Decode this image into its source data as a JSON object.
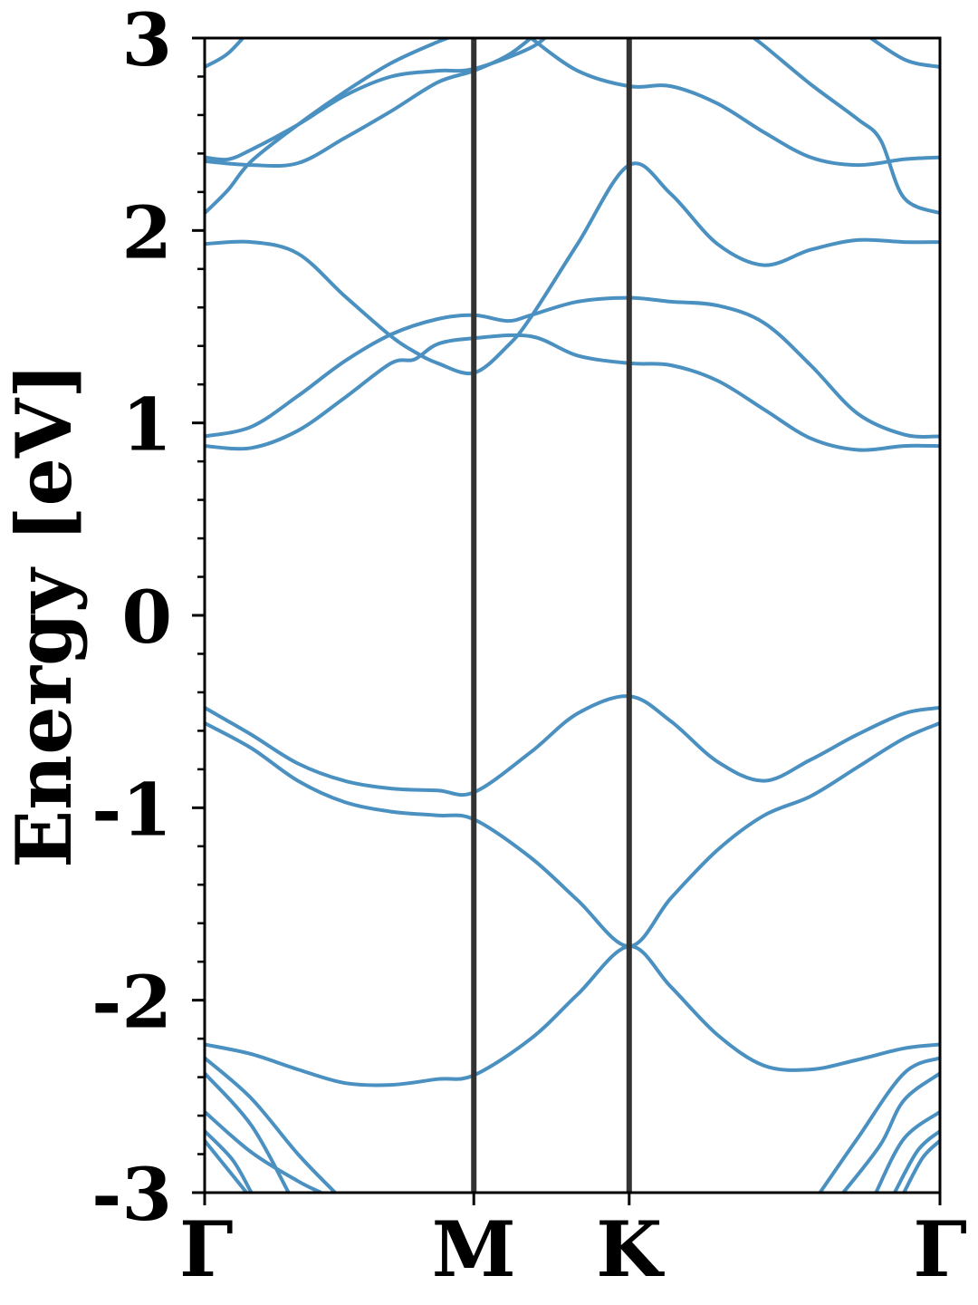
{
  "chart_data": {
    "type": "line",
    "title": "",
    "xlabel": "",
    "ylabel": "Energy [eV]",
    "ylim": [
      -3,
      3
    ],
    "yticks": [
      -3,
      -2,
      -1,
      0,
      1,
      2,
      3
    ],
    "ytick_labels": [
      "-3",
      "-2",
      "-1",
      "0",
      "1",
      "2",
      "3"
    ],
    "ytick_minor_step": 0.2,
    "k_path": {
      "labels": [
        "Γ",
        "M",
        "K",
        "Γ"
      ],
      "positions": [
        0,
        0.5774,
        0.9107,
        1.5774
      ]
    },
    "grid": false,
    "legend": "none",
    "colors": {
      "band": "#4a90c0",
      "kline": "#333333",
      "axis": "#000000"
    },
    "series": [
      {
        "values": [
          [
            0,
            -2.23
          ],
          [
            0.1,
            -2.28
          ],
          [
            0.2,
            -2.36
          ],
          [
            0.3,
            -2.43
          ],
          [
            0.4,
            -2.44
          ],
          [
            0.5,
            -2.41
          ],
          [
            0.5774,
            -2.39
          ],
          [
            0.7,
            -2.2
          ],
          [
            0.8,
            -1.97
          ],
          [
            0.9107,
            -1.72
          ],
          [
            1.0,
            -1.93
          ],
          [
            1.1,
            -2.18
          ],
          [
            1.2,
            -2.34
          ],
          [
            1.3,
            -2.36
          ],
          [
            1.4,
            -2.31
          ],
          [
            1.5,
            -2.25
          ],
          [
            1.5774,
            -2.23
          ]
        ]
      },
      {
        "values": [
          [
            0,
            -0.48
          ],
          [
            0.1,
            -0.62
          ],
          [
            0.2,
            -0.77
          ],
          [
            0.3,
            -0.86
          ],
          [
            0.4,
            -0.9
          ],
          [
            0.5,
            -0.91
          ],
          [
            0.5774,
            -0.92
          ],
          [
            0.7,
            -0.71
          ],
          [
            0.8,
            -0.51
          ],
          [
            0.9107,
            -0.42
          ],
          [
            1.0,
            -0.55
          ],
          [
            1.1,
            -0.76
          ],
          [
            1.2,
            -0.86
          ],
          [
            1.3,
            -0.75
          ],
          [
            1.4,
            -0.62
          ],
          [
            1.5,
            -0.51
          ],
          [
            1.5774,
            -0.48
          ]
        ]
      },
      {
        "values": [
          [
            0,
            -0.56
          ],
          [
            0.1,
            -0.69
          ],
          [
            0.2,
            -0.86
          ],
          [
            0.3,
            -0.97
          ],
          [
            0.4,
            -1.02
          ],
          [
            0.5,
            -1.04
          ],
          [
            0.5774,
            -1.06
          ],
          [
            0.7,
            -1.26
          ],
          [
            0.8,
            -1.48
          ],
          [
            0.9107,
            -1.72
          ],
          [
            1.0,
            -1.47
          ],
          [
            1.1,
            -1.22
          ],
          [
            1.2,
            -1.04
          ],
          [
            1.3,
            -0.94
          ],
          [
            1.4,
            -0.79
          ],
          [
            1.5,
            -0.64
          ],
          [
            1.5774,
            -0.56
          ]
        ]
      },
      {
        "values": [
          [
            0,
            0.88
          ],
          [
            0.1,
            0.87
          ],
          [
            0.2,
            0.96
          ],
          [
            0.3,
            1.13
          ],
          [
            0.4,
            1.31
          ],
          [
            0.45,
            1.33
          ],
          [
            0.5,
            1.41
          ],
          [
            0.5774,
            1.44
          ],
          [
            0.7,
            1.45
          ],
          [
            0.8,
            1.35
          ],
          [
            0.9107,
            1.31
          ],
          [
            1.0,
            1.3
          ],
          [
            1.1,
            1.22
          ],
          [
            1.2,
            1.07
          ],
          [
            1.3,
            0.92
          ],
          [
            1.4,
            0.86
          ],
          [
            1.5,
            0.88
          ],
          [
            1.5774,
            0.88
          ]
        ]
      },
      {
        "values": [
          [
            0,
            0.93
          ],
          [
            0.1,
            0.98
          ],
          [
            0.2,
            1.14
          ],
          [
            0.3,
            1.32
          ],
          [
            0.4,
            1.46
          ],
          [
            0.5,
            1.54
          ],
          [
            0.5774,
            1.56
          ],
          [
            0.65,
            1.53
          ],
          [
            0.7,
            1.56
          ],
          [
            0.8,
            1.63
          ],
          [
            0.9107,
            1.65
          ],
          [
            1.0,
            1.63
          ],
          [
            1.1,
            1.61
          ],
          [
            1.2,
            1.52
          ],
          [
            1.3,
            1.3
          ],
          [
            1.4,
            1.05
          ],
          [
            1.5,
            0.94
          ],
          [
            1.5774,
            0.93
          ]
        ]
      },
      {
        "values": [
          [
            0,
            1.93
          ],
          [
            0.1,
            1.94
          ],
          [
            0.2,
            1.88
          ],
          [
            0.3,
            1.66
          ],
          [
            0.4,
            1.45
          ],
          [
            0.45,
            1.37
          ],
          [
            0.5,
            1.31
          ],
          [
            0.5774,
            1.26
          ],
          [
            0.65,
            1.4
          ],
          [
            0.7,
            1.55
          ],
          [
            0.8,
            1.93
          ],
          [
            0.9107,
            2.34
          ],
          [
            1.0,
            2.19
          ],
          [
            1.1,
            1.93
          ],
          [
            1.2,
            1.82
          ],
          [
            1.3,
            1.9
          ],
          [
            1.4,
            1.95
          ],
          [
            1.5,
            1.94
          ],
          [
            1.5774,
            1.94
          ]
        ]
      },
      {
        "values": [
          [
            0,
            2.09
          ],
          [
            0.05,
            2.21
          ],
          [
            0.1,
            2.36
          ],
          [
            0.2,
            2.55
          ],
          [
            0.3,
            2.72
          ],
          [
            0.4,
            2.87
          ],
          [
            0.5,
            2.98
          ],
          [
            0.5774,
            3.05
          ]
        ]
      },
      {
        "values": [
          [
            0,
            2.38
          ],
          [
            0.05,
            2.37
          ],
          [
            0.1,
            2.42
          ],
          [
            0.2,
            2.55
          ],
          [
            0.3,
            2.7
          ],
          [
            0.4,
            2.8
          ],
          [
            0.5,
            2.83
          ],
          [
            0.5774,
            2.84
          ],
          [
            0.7,
            2.95
          ],
          [
            0.75,
            3.05
          ]
        ]
      },
      {
        "values": [
          [
            0,
            2.36
          ],
          [
            0.1,
            2.34
          ],
          [
            0.2,
            2.35
          ],
          [
            0.3,
            2.48
          ],
          [
            0.4,
            2.62
          ],
          [
            0.5,
            2.77
          ],
          [
            0.5774,
            2.83
          ],
          [
            0.65,
            2.91
          ],
          [
            0.7,
            3.0
          ]
        ]
      },
      {
        "values": [
          [
            0.7,
            3.0
          ],
          [
            0.8,
            2.83
          ],
          [
            0.9107,
            2.75
          ],
          [
            1.0,
            2.75
          ],
          [
            1.1,
            2.66
          ],
          [
            1.2,
            2.51
          ],
          [
            1.3,
            2.38
          ],
          [
            1.4,
            2.34
          ],
          [
            1.5,
            2.37
          ],
          [
            1.5774,
            2.38
          ]
        ]
      },
      {
        "values": [
          [
            1.15,
            3.05
          ],
          [
            1.2,
            2.96
          ],
          [
            1.3,
            2.76
          ],
          [
            1.4,
            2.58
          ],
          [
            1.45,
            2.47
          ],
          [
            1.5,
            2.17
          ],
          [
            1.5774,
            2.09
          ]
        ]
      },
      {
        "values": [
          [
            0,
            2.85
          ],
          [
            0.05,
            2.92
          ],
          [
            0.1,
            3.05
          ]
        ]
      },
      {
        "values": [
          [
            1.4,
            3.05
          ],
          [
            1.5,
            2.89
          ],
          [
            1.5774,
            2.85
          ]
        ]
      },
      {
        "values": [
          [
            0,
            -2.3
          ],
          [
            0.1,
            -2.51
          ],
          [
            0.2,
            -2.8
          ],
          [
            0.28,
            -3.0
          ]
        ]
      },
      {
        "values": [
          [
            0,
            -2.38
          ],
          [
            0.1,
            -2.65
          ],
          [
            0.18,
            -3.0
          ]
        ]
      },
      {
        "values": [
          [
            0,
            -2.58
          ],
          [
            0.1,
            -2.79
          ],
          [
            0.2,
            -2.94
          ],
          [
            0.25,
            -3.0
          ]
        ]
      },
      {
        "values": [
          [
            0,
            -2.68
          ],
          [
            0.06,
            -2.83
          ],
          [
            0.1,
            -3.0
          ]
        ]
      },
      {
        "values": [
          [
            0,
            -2.73
          ],
          [
            0.05,
            -2.88
          ],
          [
            0.09,
            -3.0
          ]
        ]
      },
      {
        "values": [
          [
            1.32,
            -3.0
          ],
          [
            1.4,
            -2.72
          ],
          [
            1.5,
            -2.38
          ],
          [
            1.5774,
            -2.3
          ]
        ]
      },
      {
        "values": [
          [
            1.37,
            -3.0
          ],
          [
            1.45,
            -2.75
          ],
          [
            1.5,
            -2.52
          ],
          [
            1.5774,
            -2.38
          ]
        ]
      },
      {
        "values": [
          [
            1.44,
            -3.0
          ],
          [
            1.5,
            -2.72
          ],
          [
            1.5774,
            -2.58
          ]
        ]
      },
      {
        "values": [
          [
            1.48,
            -3.0
          ],
          [
            1.53,
            -2.78
          ],
          [
            1.5774,
            -2.68
          ]
        ]
      },
      {
        "values": [
          [
            1.5,
            -3.0
          ],
          [
            1.54,
            -2.82
          ],
          [
            1.5774,
            -2.73
          ]
        ]
      }
    ]
  }
}
